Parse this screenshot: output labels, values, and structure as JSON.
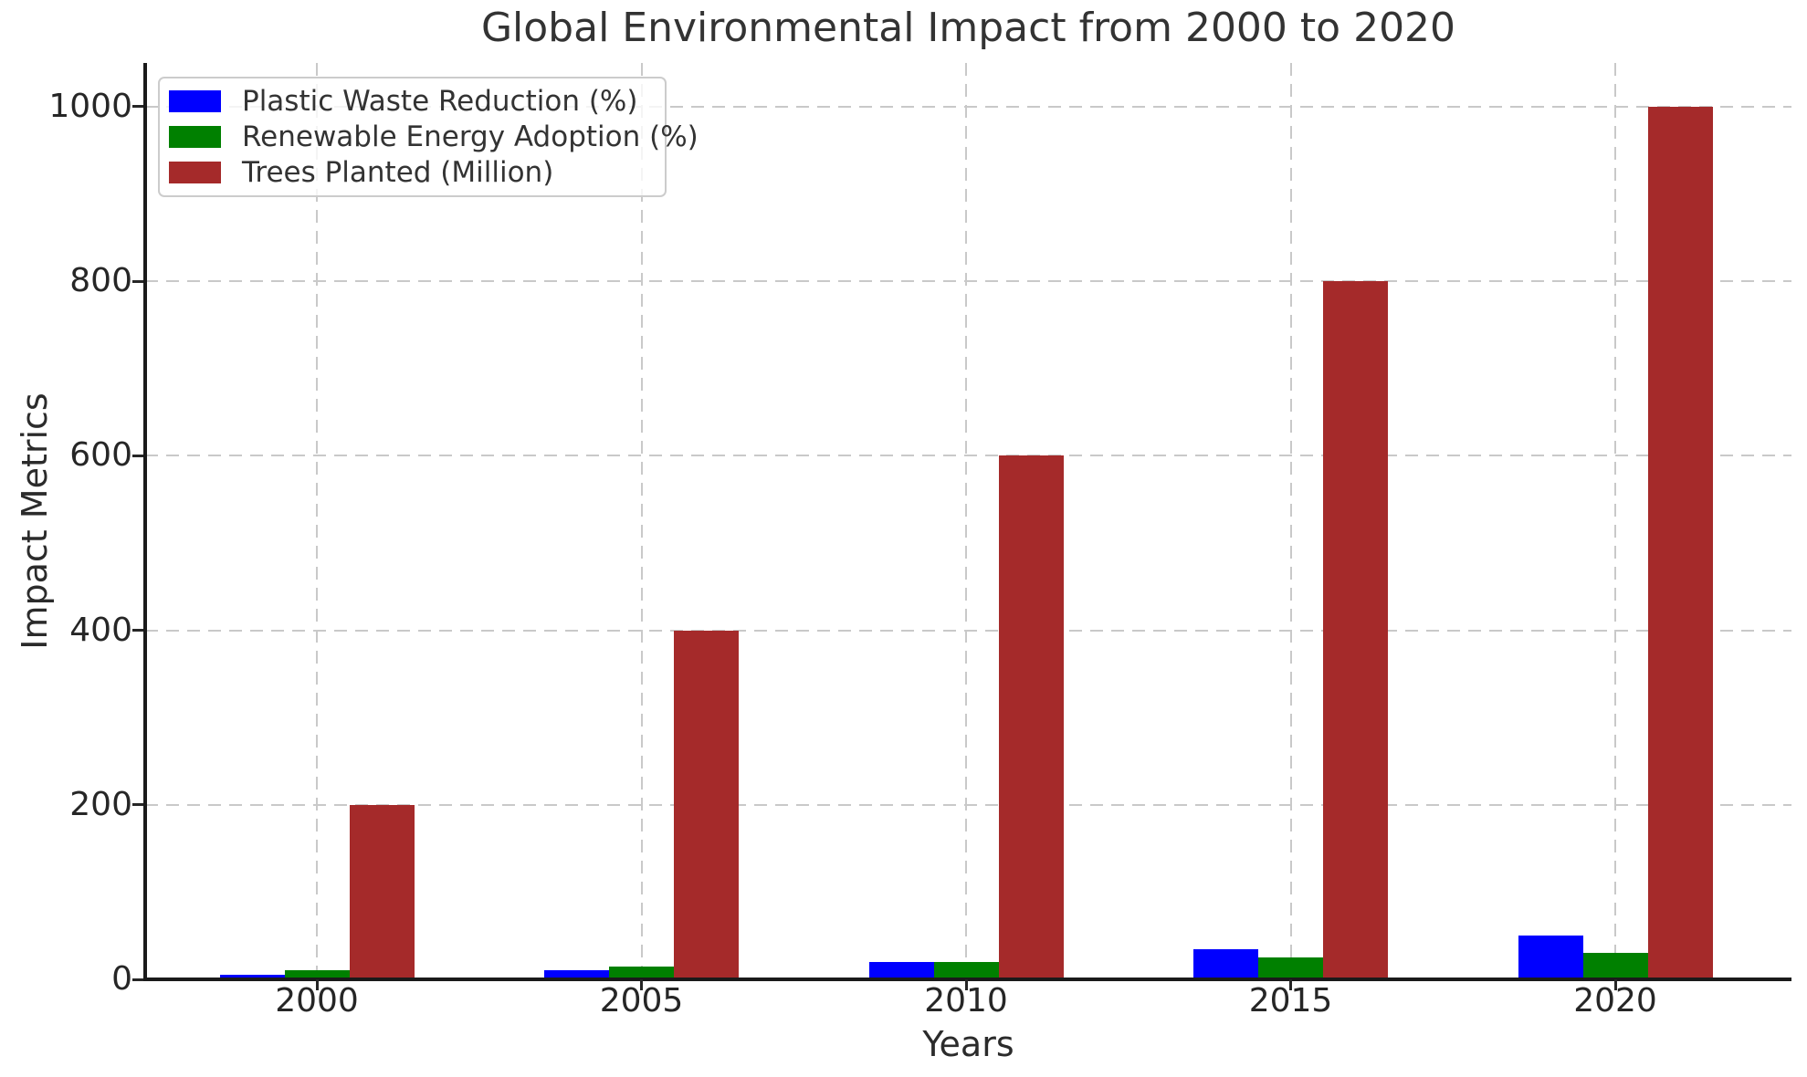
{
  "chart_data": {
    "type": "bar",
    "title": "Global Environmental Impact from 2000 to 2020",
    "xlabel": "Years",
    "ylabel": "Impact Metrics",
    "categories": [
      "2000",
      "2005",
      "2010",
      "2015",
      "2020"
    ],
    "series": [
      {
        "name": "Plastic Waste Reduction (%)",
        "color": "#0000FF",
        "values": [
          5,
          10,
          20,
          35,
          50
        ]
      },
      {
        "name": "Renewable Energy Adoption (%)",
        "color": "#008000",
        "values": [
          10,
          15,
          20,
          25,
          30
        ]
      },
      {
        "name": "Trees Planted (Million)",
        "color": "#A52A2A",
        "values": [
          200,
          400,
          600,
          800,
          1000
        ]
      }
    ],
    "ylim": [
      0,
      1050
    ],
    "yticks": [
      0,
      200,
      400,
      600,
      800,
      1000
    ],
    "grid": true,
    "grid_style": "dashed",
    "legend_position": "upper left",
    "colors": {
      "grid": "#c9c9c9",
      "spine": "#1a1a1a",
      "tick_text": "#262626",
      "title_text": "#333333",
      "legend_border": "#cccccc"
    }
  }
}
